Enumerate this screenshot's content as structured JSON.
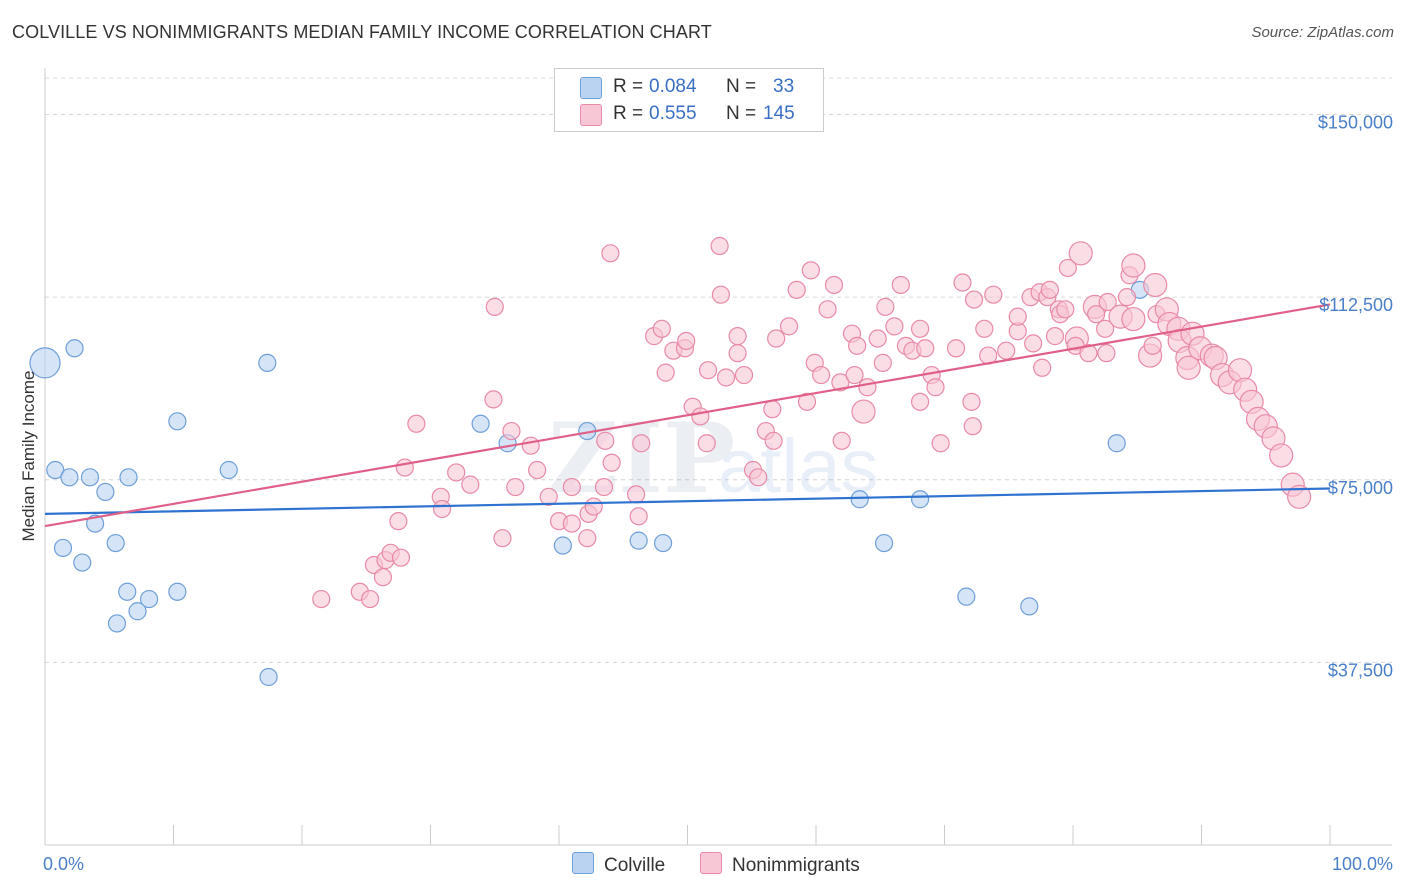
{
  "title": "COLVILLE VS NONIMMIGRANTS MEDIAN FAMILY INCOME CORRELATION CHART",
  "source": "Source: ZipAtlas.com",
  "watermark": "ZIPatlas",
  "legend": {
    "r_label": "R =",
    "n_label": "N =",
    "rows": [
      {
        "name": "Colville",
        "r": "0.084",
        "n": "33",
        "fill": "#b9d3f1",
        "stroke": "#6f9fd8"
      },
      {
        "name": "Nonimmigrants",
        "r": "0.555",
        "n": "145",
        "fill": "#f8c7d6",
        "stroke": "#e88aa8"
      }
    ]
  },
  "chart_data": {
    "type": "scatter",
    "title": "COLVILLE VS NONIMMIGRANTS MEDIAN FAMILY INCOME CORRELATION CHART",
    "xlabel": "",
    "ylabel": "Median Family Income",
    "xlim": [
      0,
      100
    ],
    "ylim": [
      0,
      157500
    ],
    "x_tick_labels": [
      {
        "value": 0,
        "label": "0.0%"
      },
      {
        "value": 100,
        "label": "100.0%"
      }
    ],
    "y_ticks": [
      {
        "value": 37500,
        "label": "$37,500"
      },
      {
        "value": 75000,
        "label": "$75,000"
      },
      {
        "value": 112500,
        "label": "$112,500"
      },
      {
        "value": 150000,
        "label": "$150,000"
      }
    ],
    "series": [
      {
        "name": "Colville",
        "color": "#6f9fd8",
        "fill": "#b9d3f1",
        "line_color": "#2f72d0",
        "trend": {
          "x": [
            0,
            100
          ],
          "y": [
            68000,
            73200
          ]
        },
        "points": [
          [
            0.0,
            99000,
            3
          ],
          [
            2.3,
            102000,
            1
          ],
          [
            0.8,
            77000,
            1
          ],
          [
            1.9,
            75500,
            1
          ],
          [
            3.5,
            75500,
            1
          ],
          [
            4.7,
            72500,
            1
          ],
          [
            6.5,
            75500,
            1
          ],
          [
            3.9,
            66000,
            1
          ],
          [
            1.4,
            61000,
            1
          ],
          [
            2.9,
            58000,
            1
          ],
          [
            5.5,
            62000,
            1
          ],
          [
            6.4,
            52000,
            1
          ],
          [
            8.1,
            50500,
            1
          ],
          [
            7.2,
            48000,
            1
          ],
          [
            5.6,
            45500,
            1
          ],
          [
            10.3,
            52000,
            1
          ],
          [
            10.3,
            87000,
            1
          ],
          [
            14.3,
            77000,
            1
          ],
          [
            17.3,
            99000,
            1
          ],
          [
            17.4,
            34500,
            1
          ],
          [
            33.9,
            86500,
            1
          ],
          [
            36.0,
            82500,
            1
          ],
          [
            42.2,
            85000,
            1
          ],
          [
            40.3,
            61500,
            1
          ],
          [
            46.2,
            62500,
            1
          ],
          [
            48.1,
            62000,
            1
          ],
          [
            63.4,
            71000,
            1
          ],
          [
            68.1,
            71000,
            1
          ],
          [
            65.3,
            62000,
            1
          ],
          [
            71.7,
            51000,
            1
          ],
          [
            76.6,
            49000,
            1
          ],
          [
            83.4,
            82500,
            1
          ],
          [
            85.2,
            114000,
            1
          ]
        ]
      },
      {
        "name": "Nonimmigrants",
        "color": "#e88aa8",
        "fill": "#f8c7d6",
        "line_color": "#e0608a",
        "trend": {
          "x": [
            0,
            100
          ],
          "y": [
            65500,
            111000
          ]
        },
        "points": [
          [
            21.5,
            50500,
            1
          ],
          [
            24.5,
            52000,
            1
          ],
          [
            25.3,
            50500,
            1
          ],
          [
            25.6,
            57500,
            1
          ],
          [
            26.3,
            55000,
            1
          ],
          [
            26.5,
            58500,
            1
          ],
          [
            26.9,
            60000,
            1
          ],
          [
            27.7,
            59000,
            1
          ],
          [
            27.5,
            66500,
            1
          ],
          [
            28.0,
            77500,
            1
          ],
          [
            28.9,
            86500,
            1
          ],
          [
            30.8,
            71500,
            1
          ],
          [
            30.9,
            69000,
            1
          ],
          [
            32.0,
            76500,
            1
          ],
          [
            33.1,
            74000,
            1
          ],
          [
            34.9,
            91500,
            1
          ],
          [
            35.0,
            110500,
            1
          ],
          [
            35.6,
            63000,
            1
          ],
          [
            36.3,
            85000,
            1
          ],
          [
            36.6,
            73500,
            1
          ],
          [
            37.8,
            82000,
            1
          ],
          [
            38.3,
            77000,
            1
          ],
          [
            39.2,
            71500,
            1
          ],
          [
            40.0,
            66500,
            1
          ],
          [
            41.0,
            73500,
            1
          ],
          [
            41.0,
            66000,
            1
          ],
          [
            42.2,
            63000,
            1
          ],
          [
            42.3,
            68000,
            1
          ],
          [
            42.7,
            69500,
            1
          ],
          [
            43.5,
            73500,
            1
          ],
          [
            43.6,
            83000,
            1
          ],
          [
            44.1,
            78500,
            1
          ],
          [
            44.0,
            121500,
            1
          ],
          [
            46.0,
            72000,
            1
          ],
          [
            46.2,
            67500,
            1
          ],
          [
            46.4,
            82500,
            1
          ],
          [
            47.4,
            104500,
            1
          ],
          [
            48.0,
            106000,
            1
          ],
          [
            48.3,
            97000,
            1
          ],
          [
            48.9,
            101500,
            1
          ],
          [
            49.8,
            102000,
            1
          ],
          [
            49.9,
            103500,
            1
          ],
          [
            50.4,
            90000,
            1
          ],
          [
            51.0,
            88000,
            1
          ],
          [
            51.5,
            82500,
            1
          ],
          [
            51.6,
            97500,
            1
          ],
          [
            52.6,
            113000,
            1
          ],
          [
            52.5,
            123000,
            1
          ],
          [
            53.0,
            96000,
            1
          ],
          [
            53.9,
            101000,
            1
          ],
          [
            53.9,
            104500,
            1
          ],
          [
            54.4,
            96500,
            1
          ],
          [
            55.1,
            77000,
            1
          ],
          [
            55.5,
            75500,
            1
          ],
          [
            56.1,
            85000,
            1
          ],
          [
            56.6,
            89500,
            1
          ],
          [
            56.7,
            83000,
            1
          ],
          [
            56.9,
            104000,
            1
          ],
          [
            57.9,
            106500,
            1
          ],
          [
            58.5,
            114000,
            1
          ],
          [
            59.3,
            91000,
            1
          ],
          [
            59.6,
            118000,
            1
          ],
          [
            59.9,
            99000,
            1
          ],
          [
            60.4,
            96500,
            1
          ],
          [
            60.9,
            110000,
            1
          ],
          [
            61.4,
            115000,
            1
          ],
          [
            61.9,
            95000,
            1
          ],
          [
            62.0,
            83000,
            1
          ],
          [
            62.8,
            105000,
            1
          ],
          [
            63.0,
            96500,
            1
          ],
          [
            63.2,
            102500,
            1
          ],
          [
            63.7,
            89000,
            2
          ],
          [
            64.0,
            94000,
            1
          ],
          [
            64.8,
            104000,
            1
          ],
          [
            65.2,
            99000,
            1
          ],
          [
            65.4,
            110500,
            1
          ],
          [
            66.1,
            106500,
            1
          ],
          [
            66.6,
            115000,
            1
          ],
          [
            67.0,
            102500,
            1
          ],
          [
            67.5,
            101500,
            1
          ],
          [
            68.1,
            91000,
            1
          ],
          [
            68.1,
            106000,
            1
          ],
          [
            68.5,
            102000,
            1
          ],
          [
            69.0,
            96500,
            1
          ],
          [
            69.3,
            94000,
            1
          ],
          [
            69.7,
            82500,
            1
          ],
          [
            70.9,
            102000,
            1
          ],
          [
            71.4,
            115500,
            1
          ],
          [
            72.1,
            91000,
            1
          ],
          [
            72.2,
            86000,
            1
          ],
          [
            72.3,
            112000,
            1
          ],
          [
            73.1,
            106000,
            1
          ],
          [
            73.4,
            100500,
            1
          ],
          [
            73.8,
            113000,
            1
          ],
          [
            74.8,
            101500,
            1
          ],
          [
            75.7,
            105500,
            1
          ],
          [
            75.7,
            108500,
            1
          ],
          [
            76.7,
            112500,
            1
          ],
          [
            76.9,
            103000,
            1
          ],
          [
            77.4,
            113500,
            1
          ],
          [
            77.6,
            98000,
            1
          ],
          [
            78.0,
            112500,
            1
          ],
          [
            78.2,
            114000,
            1
          ],
          [
            78.6,
            104500,
            1
          ],
          [
            78.9,
            110000,
            1
          ],
          [
            79.0,
            109000,
            1
          ],
          [
            79.4,
            110000,
            1
          ],
          [
            79.6,
            118500,
            1
          ],
          [
            80.3,
            104000,
            2
          ],
          [
            80.2,
            102500,
            1
          ],
          [
            80.6,
            121500,
            2
          ],
          [
            81.2,
            101000,
            1
          ],
          [
            81.7,
            110500,
            2
          ],
          [
            81.8,
            109000,
            1
          ],
          [
            82.5,
            106000,
            1
          ],
          [
            82.6,
            101000,
            1
          ],
          [
            82.7,
            111500,
            1
          ],
          [
            83.7,
            108500,
            2
          ],
          [
            84.2,
            112500,
            1
          ],
          [
            84.4,
            117000,
            1
          ],
          [
            84.7,
            119000,
            2
          ],
          [
            84.7,
            108000,
            2
          ],
          [
            86.0,
            100500,
            2
          ],
          [
            86.2,
            102500,
            1
          ],
          [
            86.4,
            115000,
            2
          ],
          [
            86.5,
            109000,
            1
          ],
          [
            87.3,
            110000,
            2
          ],
          [
            87.5,
            107000,
            2
          ],
          [
            88.2,
            106000,
            2
          ],
          [
            88.3,
            103500,
            2
          ],
          [
            88.9,
            100000,
            2
          ],
          [
            89.0,
            98000,
            2
          ],
          [
            89.3,
            105000,
            2
          ],
          [
            89.9,
            102000,
            2
          ],
          [
            90.8,
            100500,
            2
          ],
          [
            91.1,
            100000,
            2
          ],
          [
            91.6,
            96500,
            2
          ],
          [
            92.2,
            95000,
            2
          ],
          [
            93.0,
            97500,
            2
          ],
          [
            93.4,
            93500,
            2
          ],
          [
            93.9,
            91000,
            2
          ],
          [
            94.4,
            87500,
            2
          ],
          [
            95.0,
            86000,
            2
          ],
          [
            95.6,
            83500,
            2
          ],
          [
            96.2,
            80000,
            2
          ],
          [
            97.1,
            74000,
            2
          ],
          [
            97.6,
            71500,
            2
          ]
        ]
      }
    ]
  }
}
